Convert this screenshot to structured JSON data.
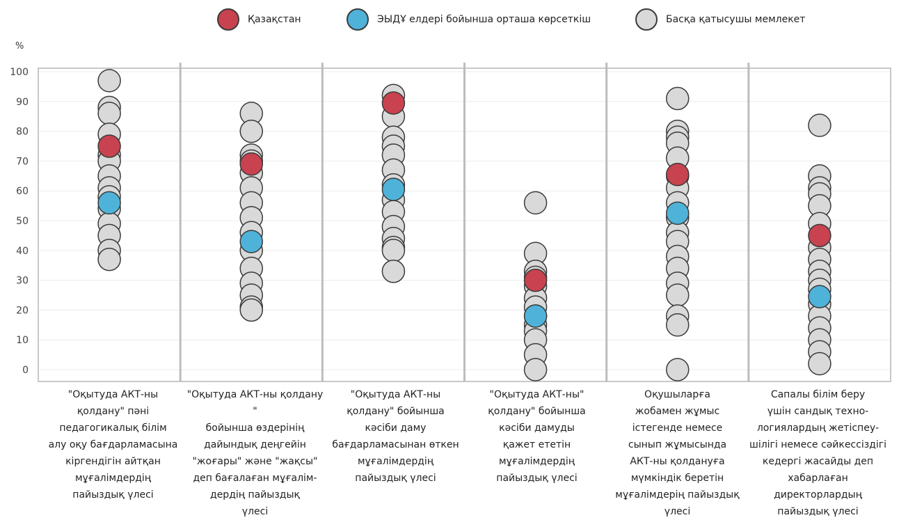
{
  "legend": {
    "kz": "Қазақстан",
    "oecd": "ЭЫДҰ елдері бойынша орташа көрсеткіш",
    "other": "Басқа қатысушы мемлекет"
  },
  "colors": {
    "kz": "#c8434f",
    "oecd": "#4fb3d9",
    "other": "#d9d9d9",
    "stroke": "#3a3a3a",
    "frame": "#c8c8c8",
    "grid": "#ececec",
    "separator": "#bdbdbd"
  },
  "chart_data": {
    "type": "scatter",
    "title": "",
    "xlabel": "",
    "ylabel": "%",
    "ylim": [
      0,
      100
    ],
    "yticks": [
      0,
      10,
      20,
      30,
      40,
      50,
      60,
      70,
      80,
      90,
      100
    ],
    "grid": true,
    "legend_position": "top-center",
    "categories": [
      "\"Оқытуда АКТ-ны\nқолдану\" пәні\nпедагогикалық білім\nалу оқу бағдарламасына\nкіргендігін айтқан\nмұғалімдердің\nпайыздық үлесі",
      "\"Оқытуда АКТ-ны қолдану \"\nбойынша өздерінің\nдайындық деңгейін\n\"жоғары\" және \"жақсы\"\nдеп бағалаған мұғалім-\nдердің пайыздық\nүлесі",
      "\"Оқытуда АКТ-ны\nқолдану\" бойынша\nкәсіби даму\nбағдарламасынан өткен\nмұғалімдердің\nпайыздық үлесі",
      "\"Оқытуда АКТ-ны\"\nқолдану\" бойынша\nкәсіби дамуды\nқажет ететін\nмұғалімдердің\nпайыздық үлесі",
      "Оқушыларға\nжобамен жұмыс\nістегенде немесе\nсынып жұмысында\nАКТ-ны қолдануға\nмүмкіндік беретін\nмұғалімдерің пайыздық\nүлесі",
      "Сапалы білім беру\nүшін сандық техно-\nлогиялардың жетіспеу-\nшілігі немесе сәйкессіздігі\nкедергі жасайды деп\nхабарлаған\nдиректорлардың\nпайыздық үлесі"
    ],
    "series": [
      {
        "name": "Басқа қатысушы мемлекет",
        "values": [
          [
            97,
            88,
            86,
            79,
            72,
            70,
            65,
            61,
            58,
            54,
            49,
            45,
            40,
            37
          ],
          [
            86,
            80,
            72,
            70,
            66,
            61,
            56,
            51,
            46,
            40,
            34,
            29,
            25,
            21,
            20
          ],
          [
            92,
            85,
            78,
            75,
            72,
            67,
            62,
            57,
            53,
            48,
            44,
            41,
            40,
            33
          ],
          [
            56,
            39,
            33,
            31,
            28,
            24,
            21,
            18,
            15,
            13,
            10,
            5,
            0
          ],
          [
            91,
            80,
            78,
            76,
            71,
            65,
            61,
            56,
            51,
            46,
            43,
            38,
            34,
            29,
            25,
            18,
            15,
            0
          ],
          [
            82,
            65,
            61,
            59,
            55,
            49,
            41,
            37,
            33,
            30,
            27,
            22,
            18,
            14,
            10,
            6,
            2
          ]
        ]
      },
      {
        "name": "ЭЫДҰ елдері бойынша орташа көрсеткіш",
        "values": [
          56,
          43,
          60.5,
          18,
          52.5,
          24.5
        ]
      },
      {
        "name": "Қазақстан",
        "values": [
          75,
          69,
          89.5,
          30,
          65.5,
          45
        ]
      }
    ]
  }
}
